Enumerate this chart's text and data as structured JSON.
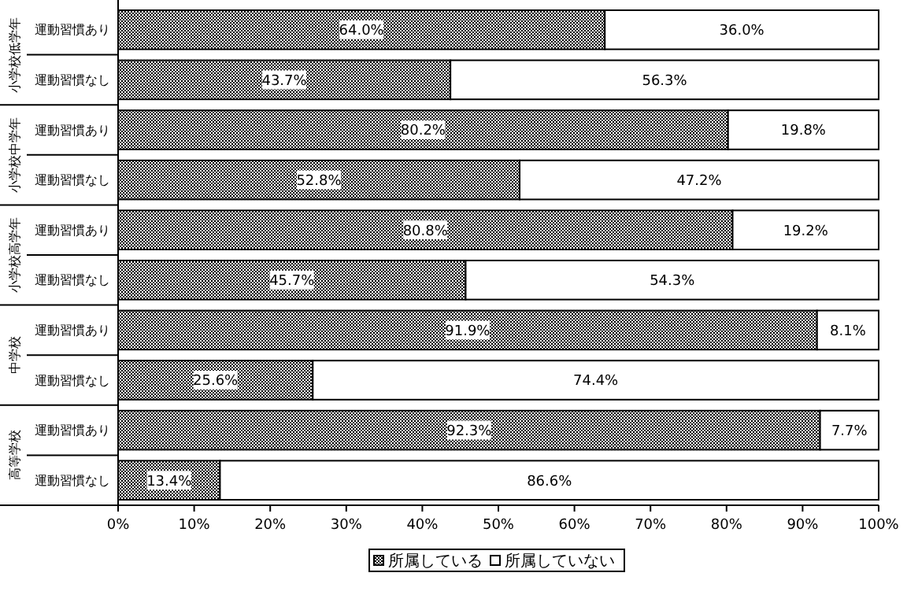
{
  "chart_data": {
    "type": "bar",
    "orientation": "horizontal",
    "stacked": true,
    "categories": [
      "運動習慣あり",
      "運動習慣なし",
      "運動習慣あり",
      "運動習慣なし",
      "運動習慣あり",
      "運動習慣なし",
      "運動習慣あり",
      "運動習慣なし",
      "運動習慣あり",
      "運動習慣なし"
    ],
    "series": [
      {
        "name": "所属している",
        "color": "#000000",
        "values": [
          64.0,
          43.7,
          80.2,
          52.8,
          80.8,
          45.7,
          91.9,
          25.6,
          92.3,
          13.4
        ],
        "value_labels": [
          "64.0%",
          "43.7%",
          "80.2%",
          "52.8%",
          "80.8%",
          "45.7%",
          "91.9%",
          "25.6%",
          "92.3%",
          "13.4%"
        ]
      },
      {
        "name": "所属していない",
        "color": "#ffffff",
        "values": [
          36.0,
          56.3,
          19.8,
          47.2,
          19.2,
          54.3,
          8.1,
          74.4,
          7.7,
          86.6
        ],
        "value_labels": [
          "36.0%",
          "56.3%",
          "19.8%",
          "47.2%",
          "19.2%",
          "54.3%",
          "8.1%",
          "74.4%",
          "7.7%",
          "86.6%"
        ]
      }
    ],
    "annotations": [
      "小学校低学年",
      "小学校中学年",
      "小学校高学年",
      "中学校",
      "高等学校"
    ],
    "xlim": [
      0,
      100
    ],
    "xticks": [
      {
        "value": 0,
        "label": "0%"
      },
      {
        "value": 10,
        "label": "10%"
      },
      {
        "value": 20,
        "label": "20%"
      },
      {
        "value": 30,
        "label": "30%"
      },
      {
        "value": 40,
        "label": "40%"
      },
      {
        "value": 50,
        "label": "50%"
      },
      {
        "value": 60,
        "label": "60%"
      },
      {
        "value": 70,
        "label": "70%"
      },
      {
        "value": 80,
        "label": "80%"
      },
      {
        "value": 90,
        "label": "90%"
      },
      {
        "value": 100,
        "label": "100%"
      }
    ],
    "grid": false,
    "legend": "bottom"
  }
}
